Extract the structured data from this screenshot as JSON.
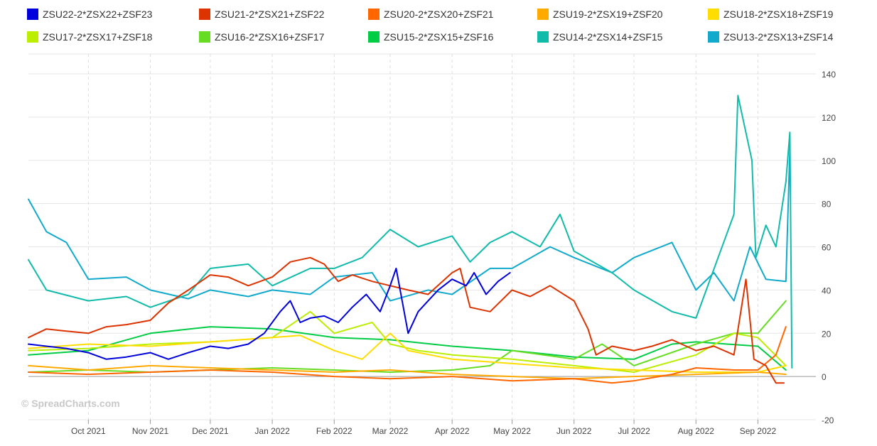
{
  "chart_data": {
    "type": "line",
    "title": "",
    "xlabel": "",
    "ylabel": "",
    "ylim": [
      -20,
      140
    ],
    "y_ticks": [
      -20,
      0,
      20,
      40,
      60,
      80,
      100,
      120,
      140
    ],
    "grid": true,
    "legend_position": "top",
    "x_start": "2021-09-01",
    "x_end": "2022-09-30",
    "x_ticks": [
      {
        "label": "Oct 2021",
        "date": "2021-10-01"
      },
      {
        "label": "Nov 2021",
        "date": "2021-11-01"
      },
      {
        "label": "Dec 2021",
        "date": "2021-12-01"
      },
      {
        "label": "Jan 2022",
        "date": "2022-01-01"
      },
      {
        "label": "Feb 2022",
        "date": "2022-02-01"
      },
      {
        "label": "Mar 2022",
        "date": "2022-03-01"
      },
      {
        "label": "Apr 2022",
        "date": "2022-04-01"
      },
      {
        "label": "May 2022",
        "date": "2022-05-01"
      },
      {
        "label": "Jun 2022",
        "date": "2022-06-01"
      },
      {
        "label": "Jul 2022",
        "date": "2022-07-01"
      },
      {
        "label": "Aug 2022",
        "date": "2022-08-01"
      },
      {
        "label": "Sep 2022",
        "date": "2022-09-01"
      }
    ],
    "series": [
      {
        "name": "ZSU22-2*ZSX22+ZSF23",
        "color": "#0000dd",
        "points": [
          [
            "2021-09-01",
            15
          ],
          [
            "2021-09-10",
            14
          ],
          [
            "2021-09-20",
            13
          ],
          [
            "2021-10-01",
            11
          ],
          [
            "2021-10-10",
            8
          ],
          [
            "2021-10-20",
            9
          ],
          [
            "2021-11-01",
            11
          ],
          [
            "2021-11-10",
            8
          ],
          [
            "2021-11-20",
            11
          ],
          [
            "2021-12-01",
            14
          ],
          [
            "2021-12-10",
            13
          ],
          [
            "2021-12-20",
            15
          ],
          [
            "2021-12-28",
            20
          ],
          [
            "2022-01-05",
            30
          ],
          [
            "2022-01-10",
            35
          ],
          [
            "2022-01-15",
            25
          ],
          [
            "2022-01-20",
            27
          ],
          [
            "2022-01-27",
            28
          ],
          [
            "2022-02-03",
            25
          ],
          [
            "2022-02-10",
            32
          ],
          [
            "2022-02-17",
            38
          ],
          [
            "2022-02-24",
            30
          ],
          [
            "2022-03-01",
            42
          ],
          [
            "2022-03-04",
            50
          ],
          [
            "2022-03-10",
            20
          ],
          [
            "2022-03-15",
            30
          ],
          [
            "2022-03-20",
            35
          ],
          [
            "2022-03-25",
            40
          ],
          [
            "2022-04-01",
            45
          ],
          [
            "2022-04-08",
            42
          ],
          [
            "2022-04-12",
            48
          ],
          [
            "2022-04-18",
            38
          ],
          [
            "2022-04-24",
            44
          ],
          [
            "2022-04-30",
            48
          ]
        ]
      },
      {
        "name": "ZSU21-2*ZSX21+ZSF22",
        "color": "#dd3300",
        "points": [
          [
            "2021-09-01",
            18
          ],
          [
            "2021-09-10",
            22
          ],
          [
            "2021-09-20",
            21
          ],
          [
            "2021-10-01",
            20
          ],
          [
            "2021-10-10",
            23
          ],
          [
            "2021-10-20",
            24
          ],
          [
            "2021-11-01",
            26
          ],
          [
            "2021-11-10",
            34
          ],
          [
            "2021-11-20",
            40
          ],
          [
            "2021-12-01",
            47
          ],
          [
            "2021-12-10",
            46
          ],
          [
            "2021-12-20",
            42
          ],
          [
            "2022-01-01",
            46
          ],
          [
            "2022-01-10",
            53
          ],
          [
            "2022-01-20",
            55
          ],
          [
            "2022-01-27",
            52
          ],
          [
            "2022-02-03",
            44
          ],
          [
            "2022-02-10",
            47
          ],
          [
            "2022-02-20",
            44
          ],
          [
            "2022-03-01",
            42
          ],
          [
            "2022-03-10",
            40
          ],
          [
            "2022-03-20",
            38
          ],
          [
            "2022-04-01",
            48
          ],
          [
            "2022-04-05",
            50
          ],
          [
            "2022-04-10",
            32
          ],
          [
            "2022-04-20",
            30
          ],
          [
            "2022-05-01",
            40
          ],
          [
            "2022-05-10",
            37
          ],
          [
            "2022-05-20",
            42
          ],
          [
            "2022-06-01",
            35
          ],
          [
            "2022-06-08",
            22
          ],
          [
            "2022-06-12",
            10
          ],
          [
            "2022-06-20",
            14
          ],
          [
            "2022-07-01",
            12
          ],
          [
            "2022-07-10",
            14
          ],
          [
            "2022-07-20",
            17
          ],
          [
            "2022-08-01",
            12
          ],
          [
            "2022-08-10",
            14
          ],
          [
            "2022-08-20",
            10
          ],
          [
            "2022-08-26",
            45
          ],
          [
            "2022-08-30",
            8
          ],
          [
            "2022-09-05",
            5
          ],
          [
            "2022-09-10",
            -3
          ],
          [
            "2022-09-14",
            -3
          ]
        ]
      },
      {
        "name": "ZSU20-2*ZSX20+ZSF21",
        "color": "#ff6600",
        "points": [
          [
            "2021-09-01",
            2
          ],
          [
            "2021-10-01",
            1
          ],
          [
            "2021-11-01",
            2
          ],
          [
            "2021-12-01",
            3
          ],
          [
            "2022-01-01",
            2
          ],
          [
            "2022-02-01",
            0
          ],
          [
            "2022-03-01",
            -1
          ],
          [
            "2022-04-01",
            0
          ],
          [
            "2022-05-01",
            -2
          ],
          [
            "2022-06-01",
            -1
          ],
          [
            "2022-06-20",
            -3
          ],
          [
            "2022-07-01",
            -2
          ],
          [
            "2022-07-20",
            1
          ],
          [
            "2022-08-01",
            4
          ],
          [
            "2022-08-20",
            3
          ],
          [
            "2022-09-01",
            3
          ],
          [
            "2022-09-10",
            10
          ],
          [
            "2022-09-15",
            23
          ]
        ]
      },
      {
        "name": "ZSU19-2*ZSX19+ZSF20",
        "color": "#ffaa00",
        "points": [
          [
            "2021-09-01",
            5
          ],
          [
            "2021-10-01",
            3
          ],
          [
            "2021-11-01",
            5
          ],
          [
            "2021-12-01",
            4
          ],
          [
            "2022-01-01",
            3
          ],
          [
            "2022-02-01",
            2
          ],
          [
            "2022-03-01",
            3
          ],
          [
            "2022-04-01",
            1
          ],
          [
            "2022-05-01",
            0
          ],
          [
            "2022-06-01",
            -1
          ],
          [
            "2022-07-01",
            0
          ],
          [
            "2022-08-01",
            1
          ],
          [
            "2022-09-01",
            2
          ],
          [
            "2022-09-15",
            1
          ]
        ]
      },
      {
        "name": "ZSU18-2*ZSX18+ZSF19",
        "color": "#ffdd00",
        "points": [
          [
            "2021-09-01",
            13
          ],
          [
            "2021-10-01",
            15
          ],
          [
            "2021-11-01",
            14
          ],
          [
            "2021-12-01",
            16
          ],
          [
            "2022-01-01",
            18
          ],
          [
            "2022-01-15",
            19
          ],
          [
            "2022-02-01",
            12
          ],
          [
            "2022-02-15",
            8
          ],
          [
            "2022-03-01",
            20
          ],
          [
            "2022-03-10",
            12
          ],
          [
            "2022-04-01",
            8
          ],
          [
            "2022-05-01",
            6
          ],
          [
            "2022-06-01",
            4
          ],
          [
            "2022-07-01",
            3
          ],
          [
            "2022-08-01",
            2
          ],
          [
            "2022-09-01",
            2
          ],
          [
            "2022-09-15",
            5
          ]
        ]
      },
      {
        "name": "ZSU17-2*ZSX17+ZSF18",
        "color": "#bbee00",
        "points": [
          [
            "2021-09-01",
            12
          ],
          [
            "2021-10-01",
            13
          ],
          [
            "2021-11-01",
            15
          ],
          [
            "2021-12-01",
            16
          ],
          [
            "2022-01-01",
            18
          ],
          [
            "2022-01-20",
            30
          ],
          [
            "2022-02-01",
            20
          ],
          [
            "2022-02-20",
            25
          ],
          [
            "2022-03-01",
            15
          ],
          [
            "2022-03-15",
            12
          ],
          [
            "2022-04-01",
            10
          ],
          [
            "2022-05-01",
            8
          ],
          [
            "2022-06-01",
            5
          ],
          [
            "2022-07-01",
            2
          ],
          [
            "2022-08-01",
            10
          ],
          [
            "2022-08-20",
            20
          ],
          [
            "2022-09-01",
            18
          ],
          [
            "2022-09-15",
            5
          ]
        ]
      },
      {
        "name": "ZSU16-2*ZSX16+ZSF17",
        "color": "#66dd22",
        "points": [
          [
            "2021-09-01",
            2
          ],
          [
            "2021-10-01",
            3
          ],
          [
            "2021-11-01",
            2
          ],
          [
            "2021-12-01",
            3
          ],
          [
            "2022-01-01",
            4
          ],
          [
            "2022-02-01",
            3
          ],
          [
            "2022-03-01",
            2
          ],
          [
            "2022-04-01",
            3
          ],
          [
            "2022-04-20",
            5
          ],
          [
            "2022-05-01",
            12
          ],
          [
            "2022-06-01",
            8
          ],
          [
            "2022-06-15",
            15
          ],
          [
            "2022-07-01",
            5
          ],
          [
            "2022-08-01",
            15
          ],
          [
            "2022-08-20",
            20
          ],
          [
            "2022-09-01",
            20
          ],
          [
            "2022-09-15",
            35
          ]
        ]
      },
      {
        "name": "ZSU15-2*ZSX15+ZSF16",
        "color": "#00cc44",
        "points": [
          [
            "2021-09-01",
            10
          ],
          [
            "2021-10-01",
            12
          ],
          [
            "2021-11-01",
            20
          ],
          [
            "2021-12-01",
            23
          ],
          [
            "2022-01-01",
            22
          ],
          [
            "2022-02-01",
            18
          ],
          [
            "2022-03-01",
            17
          ],
          [
            "2022-04-01",
            14
          ],
          [
            "2022-05-01",
            12
          ],
          [
            "2022-06-01",
            9
          ],
          [
            "2022-07-01",
            8
          ],
          [
            "2022-07-20",
            15
          ],
          [
            "2022-08-01",
            16
          ],
          [
            "2022-09-01",
            14
          ],
          [
            "2022-09-15",
            3
          ]
        ]
      },
      {
        "name": "ZSU14-2*ZSX14+ZSF15",
        "color": "#11bbaa",
        "points": [
          [
            "2021-09-01",
            54
          ],
          [
            "2021-09-10",
            40
          ],
          [
            "2021-10-01",
            35
          ],
          [
            "2021-10-20",
            37
          ],
          [
            "2021-11-01",
            32
          ],
          [
            "2021-11-20",
            38
          ],
          [
            "2021-12-01",
            50
          ],
          [
            "2021-12-20",
            52
          ],
          [
            "2022-01-01",
            42
          ],
          [
            "2022-01-20",
            50
          ],
          [
            "2022-02-01",
            50
          ],
          [
            "2022-02-15",
            55
          ],
          [
            "2022-03-01",
            68
          ],
          [
            "2022-03-15",
            60
          ],
          [
            "2022-04-01",
            65
          ],
          [
            "2022-04-10",
            53
          ],
          [
            "2022-04-20",
            62
          ],
          [
            "2022-05-01",
            67
          ],
          [
            "2022-05-15",
            60
          ],
          [
            "2022-05-25",
            75
          ],
          [
            "2022-06-01",
            58
          ],
          [
            "2022-06-20",
            48
          ],
          [
            "2022-07-01",
            40
          ],
          [
            "2022-07-20",
            30
          ],
          [
            "2022-08-01",
            27
          ],
          [
            "2022-08-20",
            75
          ],
          [
            "2022-08-22",
            130
          ],
          [
            "2022-08-29",
            100
          ],
          [
            "2022-08-31",
            55
          ],
          [
            "2022-09-05",
            70
          ],
          [
            "2022-09-10",
            60
          ],
          [
            "2022-09-15",
            90
          ],
          [
            "2022-09-17",
            113
          ],
          [
            "2022-09-18",
            4
          ]
        ]
      },
      {
        "name": "ZSU13-2*ZSX13+ZSF14",
        "color": "#11aacc",
        "points": [
          [
            "2021-09-01",
            82
          ],
          [
            "2021-09-10",
            67
          ],
          [
            "2021-09-20",
            62
          ],
          [
            "2021-10-01",
            45
          ],
          [
            "2021-10-20",
            46
          ],
          [
            "2021-11-01",
            40
          ],
          [
            "2021-11-20",
            36
          ],
          [
            "2021-12-01",
            40
          ],
          [
            "2021-12-20",
            37
          ],
          [
            "2022-01-01",
            40
          ],
          [
            "2022-01-20",
            38
          ],
          [
            "2022-02-01",
            46
          ],
          [
            "2022-02-20",
            48
          ],
          [
            "2022-03-01",
            35
          ],
          [
            "2022-03-20",
            40
          ],
          [
            "2022-04-01",
            38
          ],
          [
            "2022-04-20",
            50
          ],
          [
            "2022-05-01",
            50
          ],
          [
            "2022-05-20",
            60
          ],
          [
            "2022-06-01",
            55
          ],
          [
            "2022-06-20",
            48
          ],
          [
            "2022-07-01",
            55
          ],
          [
            "2022-07-20",
            62
          ],
          [
            "2022-08-01",
            40
          ],
          [
            "2022-08-10",
            48
          ],
          [
            "2022-08-20",
            35
          ],
          [
            "2022-08-28",
            60
          ],
          [
            "2022-09-05",
            45
          ],
          [
            "2022-09-15",
            44
          ],
          [
            "2022-09-17",
            105
          ]
        ]
      }
    ]
  },
  "legend": {
    "items": [
      {
        "label": "ZSU22-2*ZSX22+ZSF23"
      },
      {
        "label": "ZSU21-2*ZSX21+ZSF22"
      },
      {
        "label": "ZSU20-2*ZSX20+ZSF21"
      },
      {
        "label": "ZSU19-2*ZSX19+ZSF20"
      },
      {
        "label": "ZSU18-2*ZSX18+ZSF19"
      },
      {
        "label": "ZSU17-2*ZSX17+ZSF18"
      },
      {
        "label": "ZSU16-2*ZSX16+ZSF17"
      },
      {
        "label": "ZSU15-2*ZSX15+ZSF16"
      },
      {
        "label": "ZSU14-2*ZSX14+ZSF15"
      },
      {
        "label": "ZSU13-2*ZSX13+ZSF14"
      }
    ]
  },
  "watermark": "© SpreadCharts.com"
}
